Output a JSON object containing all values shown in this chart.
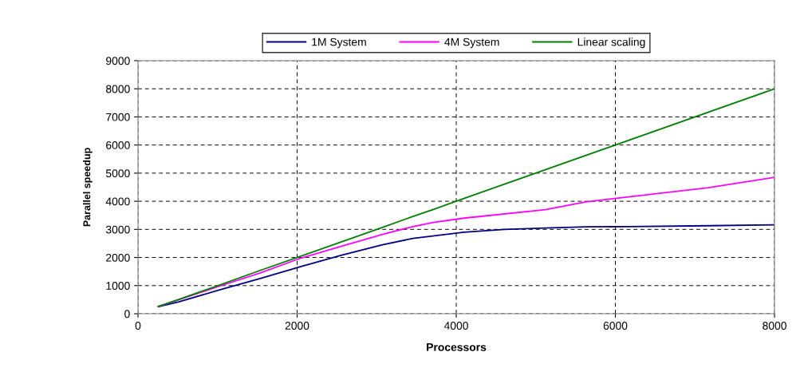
{
  "chart_data": {
    "type": "line",
    "xlabel": "Processors",
    "ylabel": "Parallel speedup",
    "xlim": [
      0,
      8000
    ],
    "xticks": [
      0,
      2000,
      4000,
      6000,
      8000
    ],
    "ylim": [
      0,
      9000
    ],
    "yticks": [
      0,
      1000,
      2000,
      3000,
      4000,
      5000,
      6000,
      7000,
      8000,
      9000
    ],
    "grid": true,
    "legend": "top",
    "marker": "none",
    "line_style": "solid",
    "series": [
      {
        "name": "1M System",
        "color": "#000080",
        "x": [
          256,
          512,
          1024,
          1536,
          2048,
          2560,
          3072,
          3456,
          4096,
          4608,
          5120,
          5632,
          6144,
          7168,
          8000
        ],
        "values": [
          250,
          420,
          850,
          1250,
          1680,
          2080,
          2450,
          2680,
          2900,
          3000,
          3050,
          3090,
          3100,
          3130,
          3160
        ]
      },
      {
        "name": "4M System",
        "color": "#ff00ff",
        "x": [
          256,
          512,
          1024,
          1536,
          2048,
          2560,
          3072,
          3456,
          3712,
          4096,
          5120,
          5632,
          6144,
          7168,
          8000
        ],
        "values": [
          260,
          500,
          980,
          1450,
          1980,
          2400,
          2820,
          3100,
          3250,
          3400,
          3700,
          3980,
          4150,
          4480,
          4850
        ]
      },
      {
        "name": "Linear scaling",
        "color": "#008000",
        "x": [
          256,
          512,
          1024,
          1536,
          2048,
          2560,
          3072,
          3456,
          3712,
          4096,
          8000
        ],
        "values": [
          260,
          510,
          1020,
          1540,
          2050,
          2560,
          3070,
          3460,
          3710,
          4100,
          8000
        ]
      }
    ]
  }
}
